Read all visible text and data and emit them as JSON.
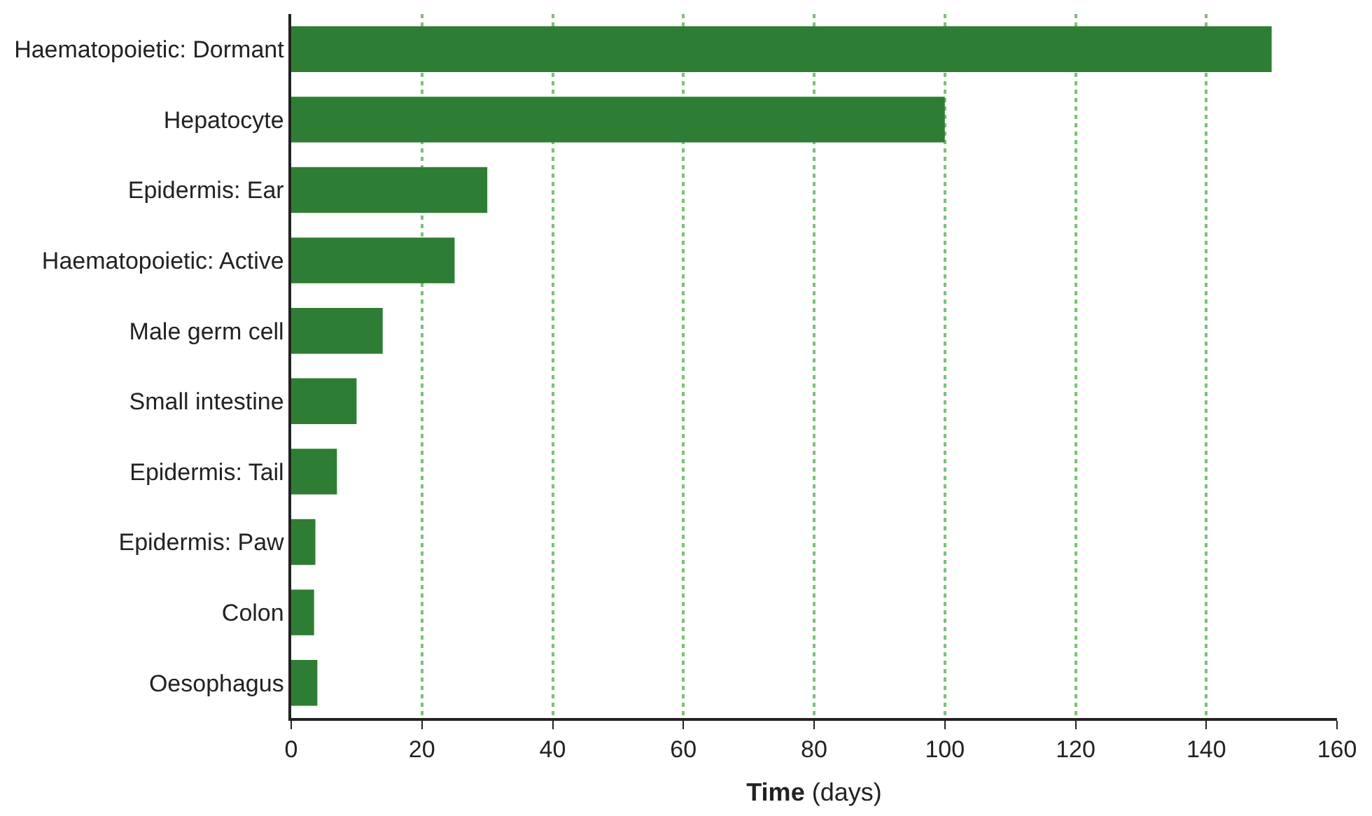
{
  "chart_data": {
    "type": "bar",
    "orientation": "horizontal",
    "xlabel": "Time (days)",
    "categories": [
      "Haematopoietic: Dormant",
      "Hepatocyte",
      "Epidermis: Ear",
      "Haematopoietic: Active",
      "Male germ cell",
      "Small intestine",
      "Epidermis: Tail",
      "Epidermis: Paw",
      "Colon",
      "Oesophagus"
    ],
    "values": [
      150,
      100,
      30,
      25,
      14,
      10,
      7,
      3.7,
      3.5,
      4
    ],
    "color": "#2e7d34",
    "xlim": [
      0,
      160
    ],
    "xticks": [
      0,
      20,
      40,
      60,
      80,
      100,
      120,
      140,
      160
    ],
    "grid": "x"
  }
}
